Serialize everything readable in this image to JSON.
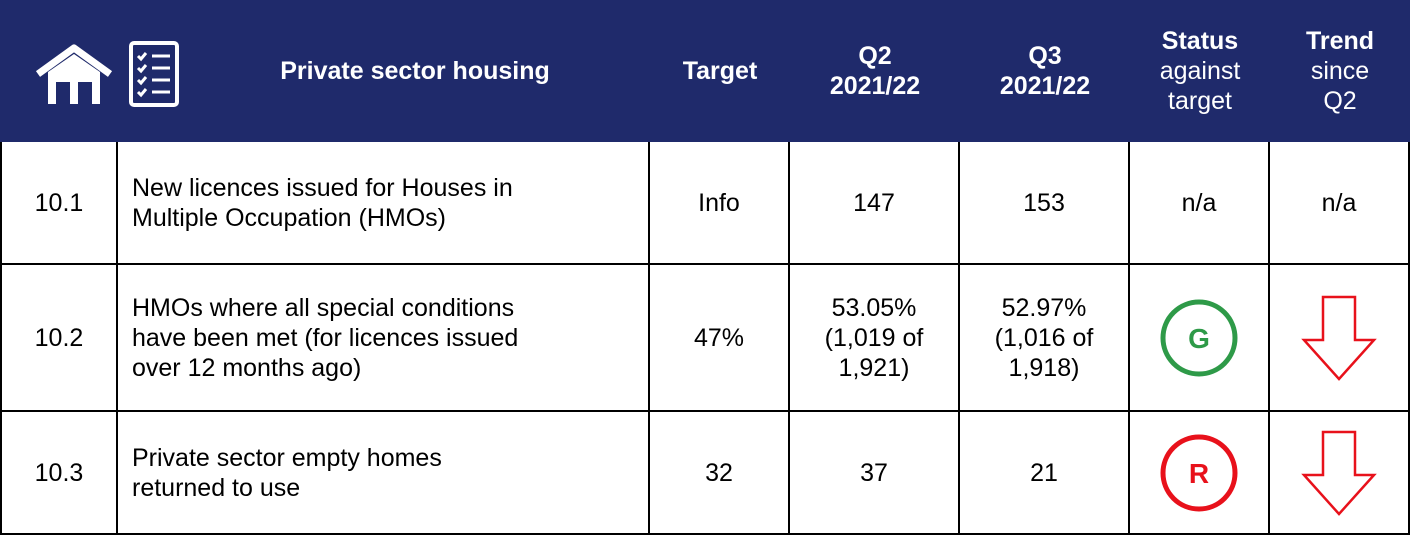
{
  "header": {
    "title": "Private sector housing",
    "columns": [
      {
        "bold": [
          "Target"
        ],
        "normal": []
      },
      {
        "bold": [
          "Q2",
          "2021/22"
        ],
        "normal": []
      },
      {
        "bold": [
          "Q3",
          "2021/22"
        ],
        "normal": []
      },
      {
        "bold": [
          "Status"
        ],
        "normal": [
          "against",
          "target"
        ]
      },
      {
        "bold": [
          "Trend"
        ],
        "normal": [
          "since",
          "Q2"
        ]
      }
    ]
  },
  "table": {
    "rows": [
      {
        "id": "10.1",
        "description": [
          "New licences issued for Houses in",
          "Multiple Occupation (HMOs)"
        ],
        "target": "Info",
        "q2": [
          "147"
        ],
        "q3": [
          "153"
        ],
        "status": "n/a",
        "trend": "n/a"
      },
      {
        "id": "10.2",
        "description": [
          "HMOs where all special conditions",
          "have been met (for licences issued",
          "over 12 months ago)"
        ],
        "target": "47%",
        "q2": [
          "53.05%",
          "(1,019 of",
          "1,921)"
        ],
        "q3": [
          "52.97%",
          "(1,016 of",
          "1,918)"
        ],
        "status": "G",
        "status_color": "#2e9a48",
        "trend_arrow": "down",
        "trend_color": "#e8111b"
      },
      {
        "id": "10.3",
        "description": [
          "Private sector empty homes",
          "returned to use"
        ],
        "target": "32",
        "q2": [
          "37"
        ],
        "q3": [
          "21"
        ],
        "status": "R",
        "status_color": "#e8111b",
        "trend_arrow": "down",
        "trend_color": "#e8111b"
      }
    ]
  }
}
